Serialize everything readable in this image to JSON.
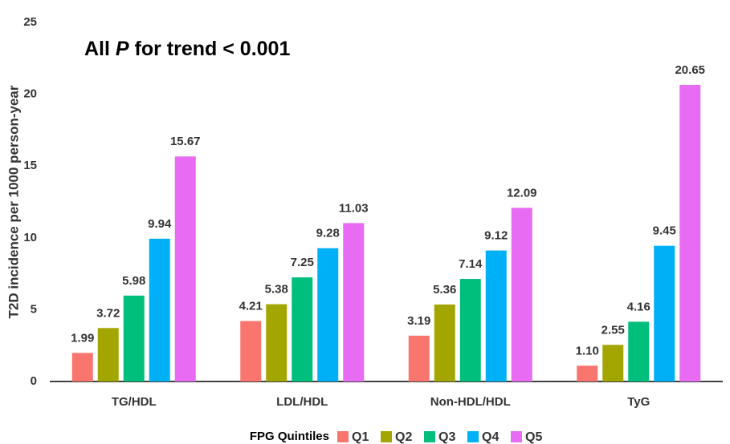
{
  "chart_data": {
    "type": "bar",
    "annotation": [
      "All ",
      "P",
      " for trend < 0.001"
    ],
    "y_label": "T2D incidence per 1000 person-year",
    "legend_title": "FPG Quintiles",
    "categories": [
      "TG/HDL",
      "LDL/HDL",
      "Non-HDL/HDL",
      "TyG"
    ],
    "series": [
      {
        "name": "Q1",
        "color": "#f8766d",
        "values": [
          1.99,
          4.21,
          3.19,
          1.1
        ],
        "value_labels": [
          "1.99",
          "4.21",
          "3.19",
          "1.10"
        ]
      },
      {
        "name": "Q2",
        "color": "#a3a500",
        "values": [
          3.72,
          5.38,
          5.36,
          2.55
        ]
      },
      {
        "name": "Q3",
        "color": "#00bf7d",
        "values": [
          5.98,
          7.25,
          7.14,
          4.16
        ]
      },
      {
        "name": "Q4",
        "color": "#00b0f6",
        "values": [
          9.94,
          9.28,
          9.12,
          9.45
        ]
      },
      {
        "name": "Q5",
        "color": "#e76bf3",
        "values": [
          15.67,
          11.03,
          12.09,
          20.65
        ]
      }
    ],
    "ylim": [
      0,
      25
    ],
    "yticks": [
      0,
      5,
      10,
      15,
      20,
      25
    ],
    "grid": false
  }
}
